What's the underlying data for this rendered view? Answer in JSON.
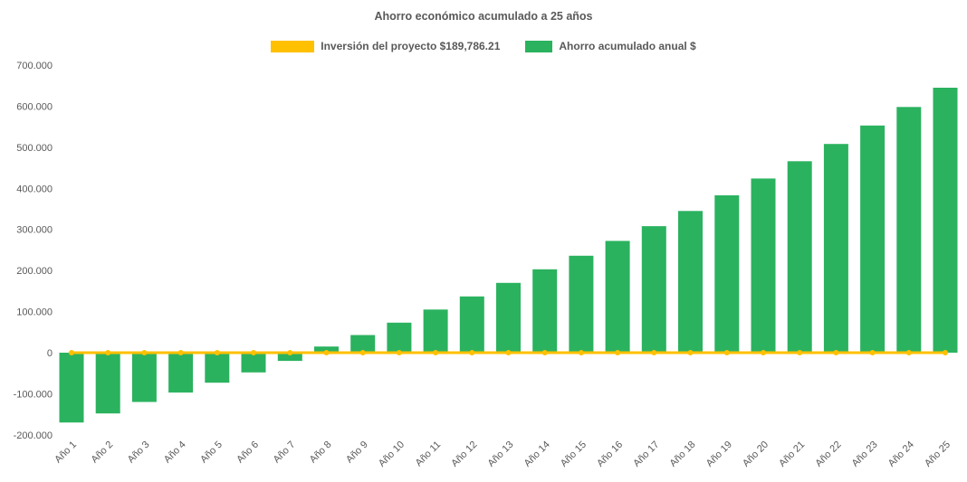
{
  "chart_data": {
    "type": "bar",
    "title": "Ahorro económico acumulado a 25 años",
    "categories": [
      "Año 1",
      "Año 2",
      "Año 3",
      "Año 4",
      "Año 5",
      "Año 6",
      "Año 7",
      "Año 8",
      "Año 9",
      "Año 10",
      "Año 11",
      "Año 12",
      "Año 13",
      "Año 14",
      "Año 15",
      "Año 16",
      "Año 17",
      "Año 18",
      "Año 19",
      "Año 20",
      "Año 21",
      "Año 22",
      "Año 23",
      "Año 24",
      "Año 25"
    ],
    "series": [
      {
        "name": "Inversión del proyecto $189,786.21",
        "type": "line",
        "color": "#FFC000",
        "values": [
          0,
          0,
          0,
          0,
          0,
          0,
          0,
          0,
          0,
          0,
          0,
          0,
          0,
          0,
          0,
          0,
          0,
          0,
          0,
          0,
          0,
          0,
          0,
          0,
          0
        ]
      },
      {
        "name": "Ahorro acumulado anual $",
        "type": "bar",
        "color": "#2BB25F",
        "values": [
          -170000,
          -148000,
          -120000,
          -97000,
          -73000,
          -48000,
          -20000,
          15000,
          43000,
          73000,
          105000,
          137000,
          170000,
          203000,
          236000,
          272000,
          308000,
          345000,
          383000,
          424000,
          466000,
          508000,
          553000,
          598000,
          645000
        ]
      }
    ],
    "ylim": [
      -200000,
      700000
    ],
    "ytick_values": [
      -200000,
      -100000,
      0,
      100000,
      200000,
      300000,
      400000,
      500000,
      600000,
      700000
    ],
    "ytick_labels": [
      "-200.000",
      "-100.000",
      "0",
      "100.000",
      "200.000",
      "300.000",
      "400.000",
      "500.000",
      "600.000",
      "700.000"
    ],
    "xlabel": "",
    "ylabel": "",
    "grid": false,
    "legend_position": "top"
  }
}
